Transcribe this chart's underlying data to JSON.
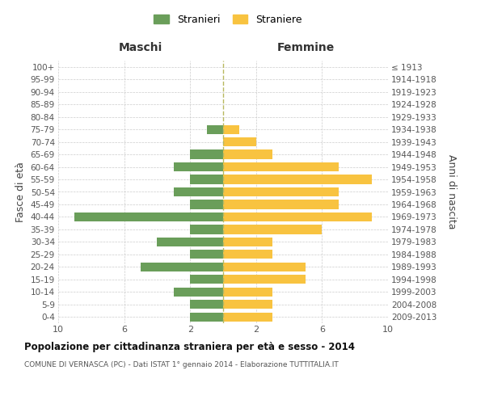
{
  "age_groups": [
    "100+",
    "95-99",
    "90-94",
    "85-89",
    "80-84",
    "75-79",
    "70-74",
    "65-69",
    "60-64",
    "55-59",
    "50-54",
    "45-49",
    "40-44",
    "35-39",
    "30-34",
    "25-29",
    "20-24",
    "15-19",
    "10-14",
    "5-9",
    "0-4"
  ],
  "birth_years": [
    "≤ 1913",
    "1914-1918",
    "1919-1923",
    "1924-1928",
    "1929-1933",
    "1934-1938",
    "1939-1943",
    "1944-1948",
    "1949-1953",
    "1954-1958",
    "1959-1963",
    "1964-1968",
    "1969-1973",
    "1974-1978",
    "1979-1983",
    "1984-1988",
    "1989-1993",
    "1994-1998",
    "1999-2003",
    "2004-2008",
    "2009-2013"
  ],
  "maschi": [
    0,
    0,
    0,
    0,
    0,
    1,
    0,
    2,
    3,
    2,
    3,
    2,
    9,
    2,
    4,
    2,
    5,
    2,
    3,
    2,
    2
  ],
  "femmine": [
    0,
    0,
    0,
    0,
    0,
    1,
    2,
    3,
    7,
    9,
    7,
    7,
    9,
    6,
    3,
    3,
    5,
    5,
    3,
    3,
    3
  ],
  "maschi_color": "#6a9e5a",
  "femmine_color": "#f8c340",
  "background_color": "#ffffff",
  "grid_color": "#cccccc",
  "title": "Popolazione per cittadinanza straniera per età e sesso - 2014",
  "subtitle": "COMUNE DI VERNASCA (PC) - Dati ISTAT 1° gennaio 2014 - Elaborazione TUTTITALIA.IT",
  "left_label": "Maschi",
  "right_label": "Femmine",
  "ylabel": "Fasce di età",
  "ylabel_right": "Anni di nascita",
  "legend_maschi": "Stranieri",
  "legend_femmine": "Straniere",
  "xlim": 10
}
